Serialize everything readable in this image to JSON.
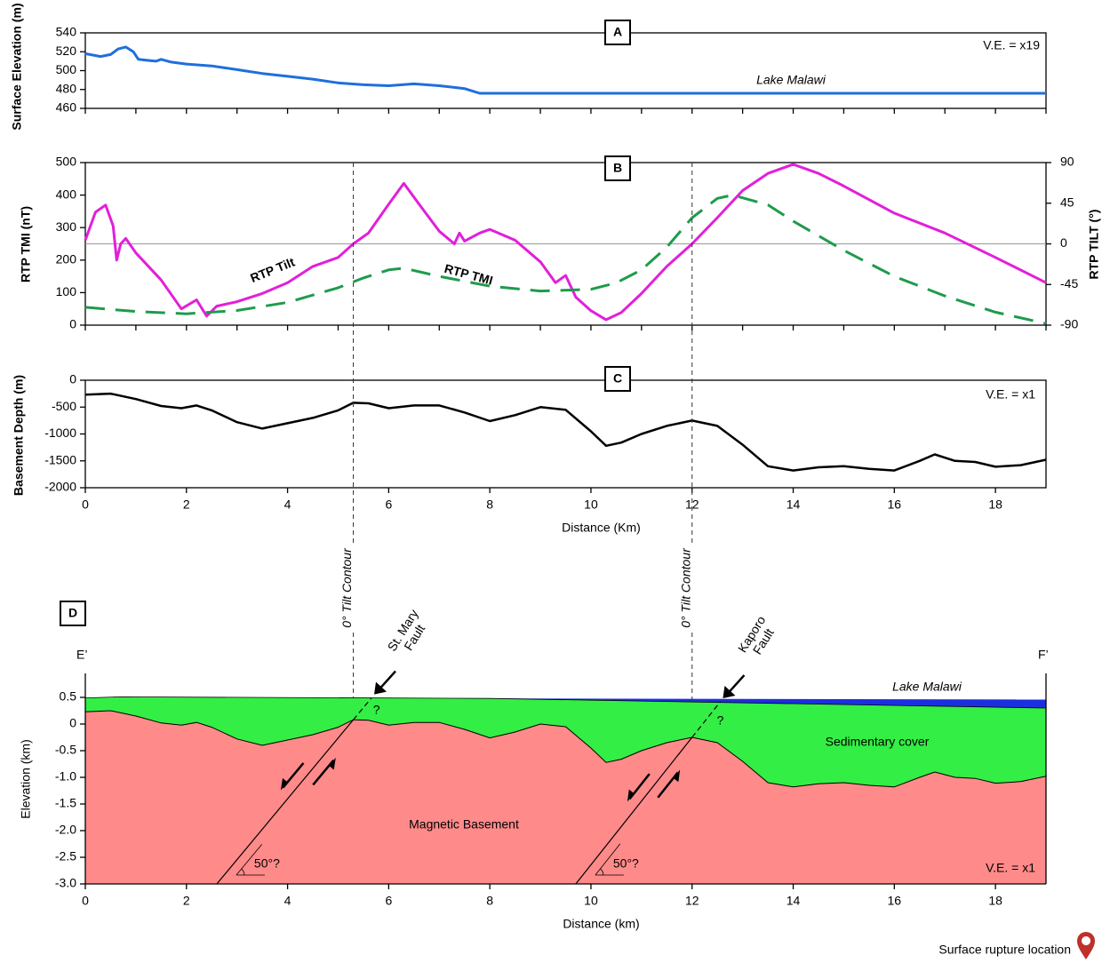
{
  "chart_data": [
    {
      "type": "line",
      "title": "A",
      "y_label": "Surface Elevation (m)",
      "annotations": [
        "Lake Malawi",
        "V.E. = x19"
      ],
      "xlim": [
        0,
        19
      ],
      "xticks": [
        0,
        1,
        2,
        3,
        4,
        5,
        6,
        7,
        8,
        9,
        10,
        11,
        12,
        13,
        14,
        15,
        16,
        17,
        18,
        19
      ],
      "ylim": [
        460,
        540
      ],
      "yticks": [
        460,
        480,
        500,
        520,
        540
      ],
      "series": [
        {
          "color": "#1f6fdc",
          "x": [
            0,
            0.3,
            0.5,
            0.65,
            0.8,
            0.95,
            1.05,
            1.2,
            1.4,
            1.5,
            1.7,
            2,
            2.5,
            3,
            3.5,
            4,
            4.5,
            5,
            5.5,
            6,
            6.5,
            7,
            7.5,
            7.8,
            19
          ],
          "values": [
            518,
            515,
            517,
            523,
            525,
            520,
            512,
            511,
            510,
            512,
            509,
            507,
            505,
            501,
            497,
            494,
            491,
            487,
            485,
            484,
            486,
            484,
            481,
            476,
            476
          ]
        }
      ]
    },
    {
      "type": "line",
      "title": "B",
      "y_label": "RTP TMI (nT)",
      "y2_label": "RTP TILT (°)",
      "xlim": [
        0,
        19
      ],
      "xticks": [
        0,
        1,
        2,
        3,
        4,
        5,
        6,
        7,
        8,
        9,
        10,
        11,
        12,
        13,
        14,
        15,
        16,
        17,
        18,
        19
      ],
      "ylim": [
        0,
        500
      ],
      "yticks": [
        0,
        100,
        200,
        300,
        400,
        500
      ],
      "y2lim": [
        -90,
        90
      ],
      "y2ticks": [
        -90,
        -45,
        0,
        45,
        90
      ],
      "reference_line": 0,
      "series": [
        {
          "name": "RTP Tilt",
          "color": "#e21fd9",
          "axis": "y2",
          "x": [
            0,
            0.2,
            0.4,
            0.55,
            0.62,
            0.7,
            0.8,
            1.0,
            1.5,
            1.9,
            2.2,
            2.4,
            2.6,
            3,
            3.5,
            4,
            4.5,
            5,
            5.3,
            5.6,
            6,
            6.3,
            6.6,
            7,
            7.3,
            7.4,
            7.5,
            7.8,
            8,
            8.5,
            9,
            9.3,
            9.5,
            9.7,
            10,
            10.3,
            10.6,
            11,
            11.5,
            12,
            12.5,
            13,
            13.5,
            14,
            14.5,
            15,
            16,
            17,
            18,
            19
          ],
          "values": [
            4,
            35,
            43,
            20,
            -18,
            0,
            6,
            -10,
            -40,
            -72,
            -62,
            -80,
            -69,
            -64,
            -55,
            -43,
            -25,
            -15,
            0,
            12,
            44,
            67,
            44,
            14,
            0,
            12,
            3,
            12,
            16,
            4,
            -20,
            -43,
            -35,
            -59,
            -74,
            -84,
            -76,
            -55,
            -25,
            0,
            29,
            59,
            78,
            88,
            78,
            64,
            34,
            12,
            -15,
            -43
          ]
        },
        {
          "name": "RTP TMI",
          "color": "#1e9b4b",
          "dash": true,
          "x": [
            0,
            1,
            2,
            3,
            4,
            5,
            5.5,
            6,
            6.3,
            7,
            8,
            9,
            10,
            10.5,
            11,
            11.5,
            12,
            12.5,
            12.8,
            13.5,
            14,
            15,
            16,
            17,
            18,
            19
          ],
          "values": [
            55,
            42,
            35,
            45,
            70,
            115,
            145,
            170,
            175,
            150,
            120,
            105,
            110,
            130,
            170,
            240,
            330,
            390,
            400,
            370,
            320,
            230,
            150,
            90,
            40,
            5
          ]
        }
      ]
    },
    {
      "type": "line",
      "title": "C",
      "y_label": "Basement Depth (m)",
      "x_label": "Distance (Km)",
      "annotations": [
        "V.E. = x1"
      ],
      "xlim": [
        0,
        19
      ],
      "xticks": [
        0,
        2,
        4,
        6,
        8,
        10,
        12,
        14,
        16,
        18
      ],
      "ylim": [
        -2000,
        0
      ],
      "yticks": [
        0,
        -500,
        -1000,
        -1500,
        -2000
      ],
      "series": [
        {
          "color": "#000000",
          "x": [
            0,
            0.5,
            1,
            1.5,
            1.9,
            2.2,
            2.5,
            3,
            3.5,
            4,
            4.5,
            5,
            5.3,
            5.6,
            6,
            6.5,
            7,
            7.5,
            8,
            8.5,
            9,
            9.5,
            10,
            10.3,
            10.6,
            11,
            11.5,
            12,
            12.5,
            13,
            13.5,
            14,
            14.5,
            15,
            15.5,
            16,
            16.5,
            16.8,
            17.2,
            17.6,
            18,
            18.5,
            19
          ],
          "values": [
            -270,
            -250,
            -350,
            -480,
            -520,
            -470,
            -560,
            -780,
            -900,
            -800,
            -700,
            -560,
            -420,
            -430,
            -520,
            -470,
            -470,
            -600,
            -760,
            -650,
            -500,
            -550,
            -950,
            -1220,
            -1160,
            -1000,
            -850,
            -750,
            -850,
            -1200,
            -1600,
            -1680,
            -1620,
            -1600,
            -1650,
            -1680,
            -1500,
            -1380,
            -1500,
            -1520,
            -1610,
            -1580,
            -1480
          ]
        }
      ]
    },
    {
      "type": "cross_section",
      "title": "D",
      "y_label": "Elevation (km)",
      "x_label": "Distance (km)",
      "end_labels": [
        "E’",
        "F’"
      ],
      "annotations": [
        "V.E. = x1"
      ],
      "xlim": [
        0,
        19
      ],
      "xticks": [
        0,
        2,
        4,
        6,
        8,
        10,
        12,
        14,
        16,
        18
      ],
      "ylim": [
        -3,
        0.95
      ],
      "yticks": [
        0.5,
        0,
        -0.5,
        {
          "value": -1,
          "label": "-1.0"
        },
        -1.5,
        {
          "value": -2,
          "label": "-2.0"
        },
        -2.5,
        {
          "value": -3,
          "label": "-3.0"
        }
      ],
      "series": [
        {
          "name": "Sedimentary cover",
          "color": "#33ee44",
          "x": [
            0,
            0.7,
            8,
            19
          ],
          "values": [
            0.49,
            0.51,
            0.48,
            0.3
          ]
        },
        {
          "name": "Magnetic Basement",
          "color": "#ff8a8a",
          "x": [
            0,
            0.5,
            1,
            1.5,
            1.9,
            2.2,
            2.5,
            3,
            3.5,
            4,
            4.5,
            5,
            5.3,
            5.6,
            6,
            6.5,
            7,
            7.5,
            8,
            8.5,
            9,
            9.5,
            10,
            10.3,
            10.6,
            11,
            11.5,
            12,
            12.5,
            13,
            13.5,
            14,
            14.5,
            15,
            15.5,
            16,
            16.5,
            16.8,
            17.2,
            17.6,
            18,
            18.5,
            19
          ],
          "values": [
            0.23,
            0.25,
            0.15,
            0.02,
            -0.02,
            0.03,
            -0.06,
            -0.28,
            -0.4,
            -0.3,
            -0.2,
            -0.06,
            0.08,
            0.07,
            -0.02,
            0.03,
            0.03,
            -0.1,
            -0.26,
            -0.15,
            0.0,
            -0.05,
            -0.45,
            -0.72,
            -0.66,
            -0.5,
            -0.35,
            -0.25,
            -0.35,
            -0.7,
            -1.1,
            -1.18,
            -1.12,
            -1.1,
            -1.15,
            -1.18,
            -1.0,
            -0.9,
            -1.0,
            -1.02,
            -1.11,
            -1.08,
            -0.98
          ]
        },
        {
          "name": "Lake Malawi",
          "color": "#1c2fe0",
          "x": [
            8,
            19
          ],
          "values": [
            0.48,
            0.46
          ]
        }
      ],
      "faults": [
        {
          "name_lines": [
            "St. Mary",
            "Fault"
          ],
          "x": [
            2.6,
            5.3
          ],
          "y": [
            -3,
            0.08
          ],
          "dip_label": "50°?",
          "query": "?"
        },
        {
          "name_lines": [
            "Kaporo",
            "Fault"
          ],
          "x": [
            9.7,
            12
          ],
          "y": [
            -3,
            -0.25
          ],
          "dip_label": "50°?",
          "query": "?"
        }
      ],
      "contours": [
        {
          "x": 5.3,
          "label": "0° Tilt Contour"
        },
        {
          "x": 12,
          "label": "0° Tilt Contour"
        }
      ],
      "marker_legend": "Surface rupture location"
    }
  ]
}
